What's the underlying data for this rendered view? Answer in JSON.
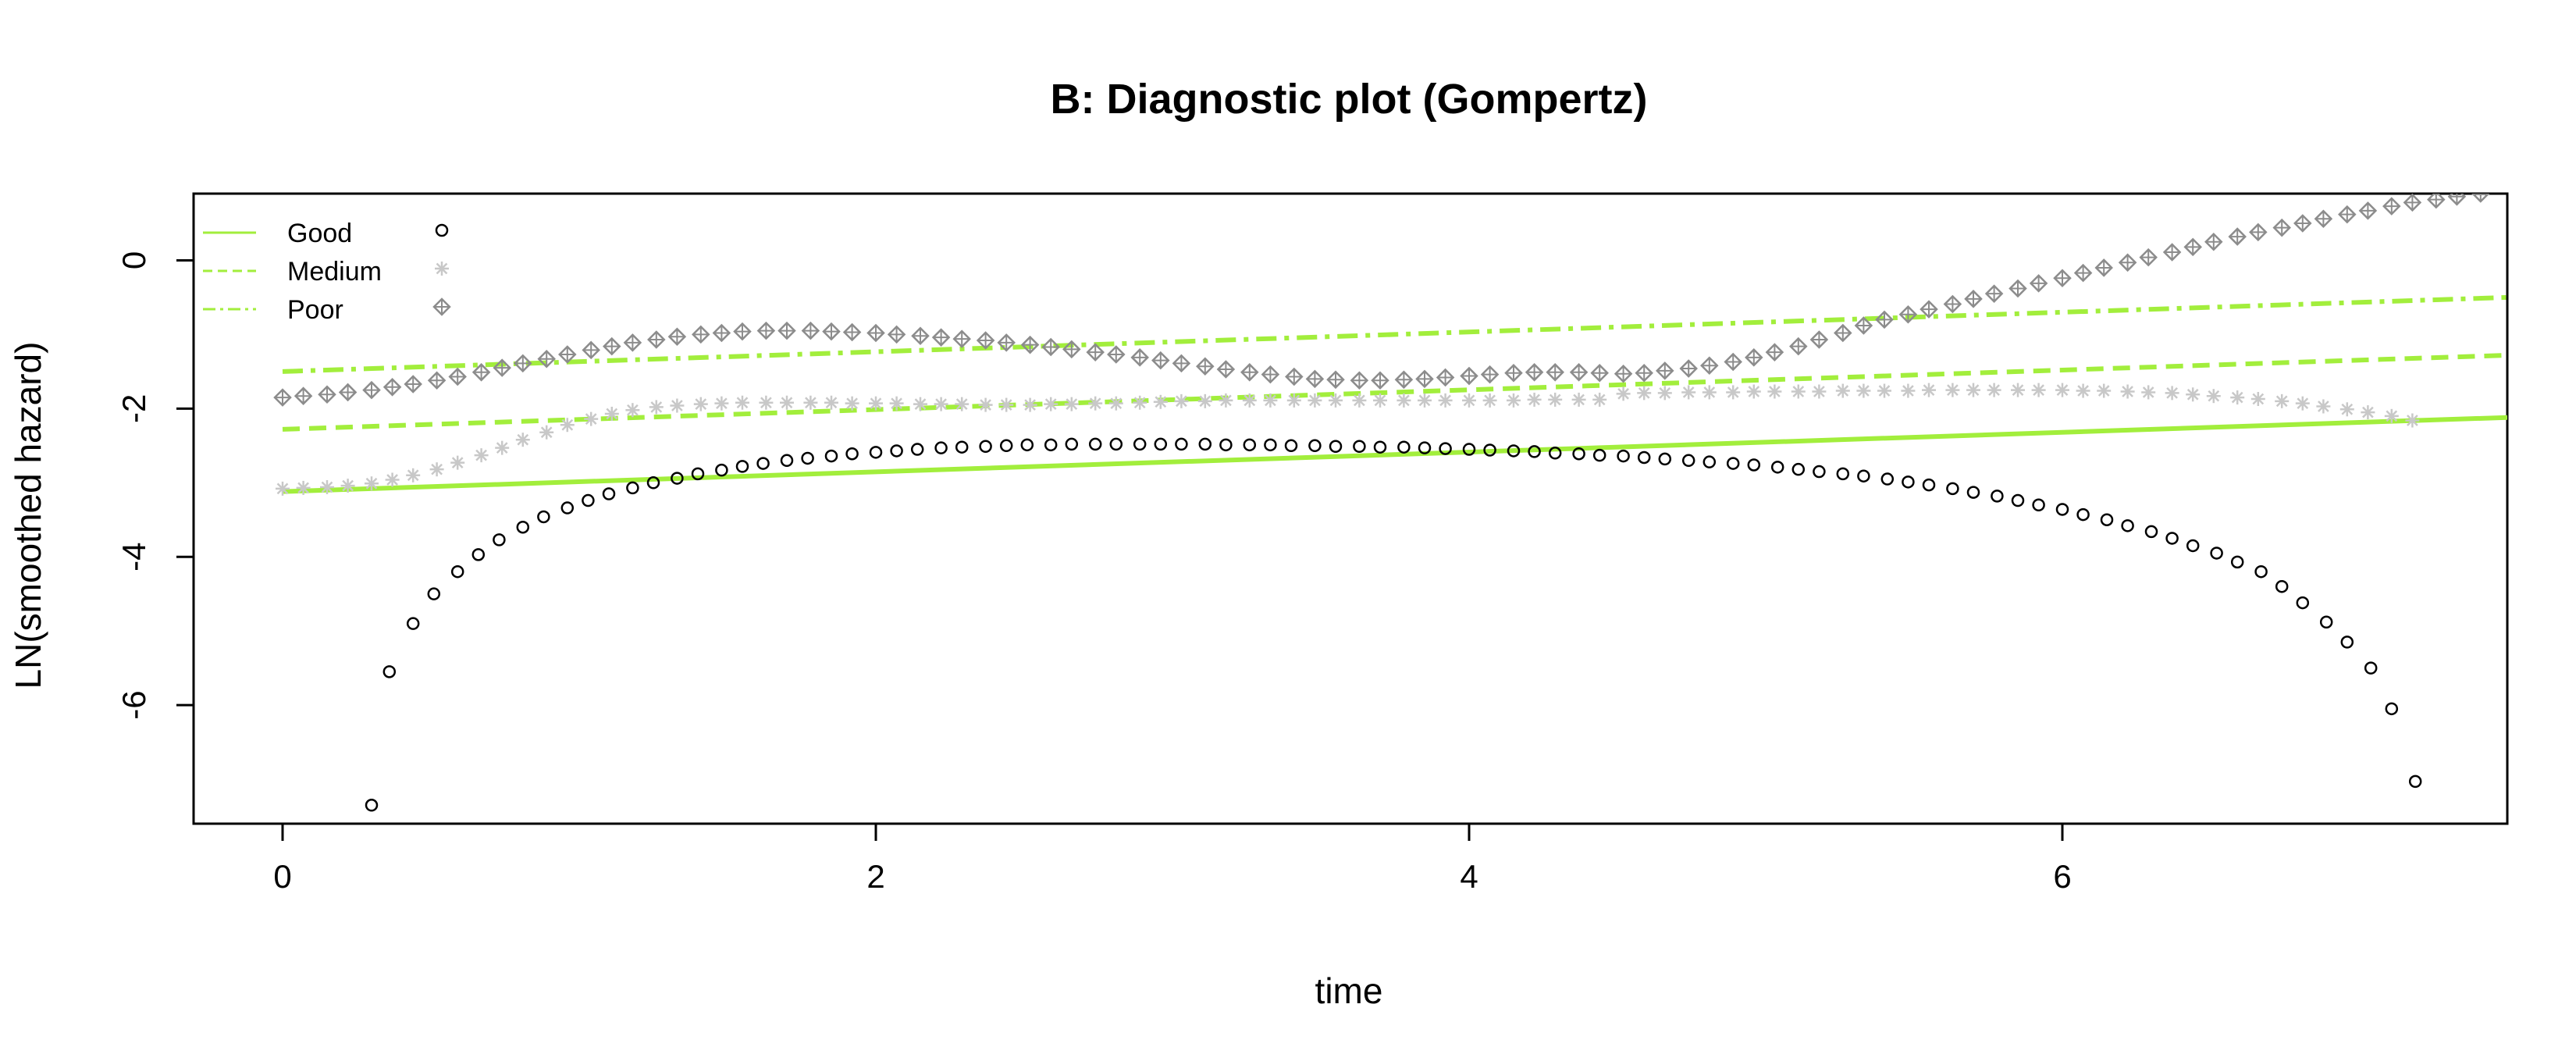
{
  "chart_data": {
    "type": "scatter",
    "title": "B: Diagnostic plot (Gompertz)",
    "xlabel": "time",
    "ylabel": "LN(smoothed hazard)",
    "xlim": [
      -0.3,
      7.5
    ],
    "ylim": [
      -7.6,
      0.9
    ],
    "x_ticks": [
      0,
      2,
      4,
      6
    ],
    "y_ticks": [
      0,
      -2,
      -4,
      -6
    ],
    "grid": false,
    "legend_position": "top-left",
    "colors": {
      "line": "#a2ee3c",
      "good_points": "#000000",
      "medium_points": "#c8c8c8",
      "poor_points": "#8c8c8c"
    },
    "legend": [
      {
        "label": "Good",
        "line_style": "solid",
        "marker": "circle"
      },
      {
        "label": "Medium",
        "line_style": "dashed",
        "marker": "asterisk"
      },
      {
        "label": "Poor",
        "line_style": "dashdot",
        "marker": "diamond-plus"
      }
    ],
    "fitted_lines": [
      {
        "group": "Good",
        "style": "solid",
        "x": [
          0,
          7.5
        ],
        "y": [
          -3.12,
          -2.12
        ]
      },
      {
        "group": "Medium",
        "style": "dashed",
        "x": [
          0,
          7.5
        ],
        "y": [
          -2.28,
          -1.28
        ]
      },
      {
        "group": "Poor",
        "style": "dashdot",
        "x": [
          0,
          7.5
        ],
        "y": [
          -1.5,
          -0.5
        ]
      }
    ],
    "series": [
      {
        "group": "Good",
        "marker": "circle",
        "points": [
          [
            0.3,
            -7.35
          ],
          [
            0.36,
            -5.55
          ],
          [
            0.44,
            -4.9
          ],
          [
            0.51,
            -4.5
          ],
          [
            0.59,
            -4.2
          ],
          [
            0.66,
            -3.97
          ],
          [
            0.73,
            -3.77
          ],
          [
            0.81,
            -3.6
          ],
          [
            0.88,
            -3.46
          ],
          [
            0.96,
            -3.34
          ],
          [
            1.03,
            -3.24
          ],
          [
            1.1,
            -3.15
          ],
          [
            1.18,
            -3.07
          ],
          [
            1.25,
            -3.0
          ],
          [
            1.33,
            -2.94
          ],
          [
            1.4,
            -2.88
          ],
          [
            1.48,
            -2.83
          ],
          [
            1.55,
            -2.78
          ],
          [
            1.62,
            -2.74
          ],
          [
            1.7,
            -2.7
          ],
          [
            1.77,
            -2.67
          ],
          [
            1.85,
            -2.64
          ],
          [
            1.92,
            -2.61
          ],
          [
            2.0,
            -2.59
          ],
          [
            2.07,
            -2.57
          ],
          [
            2.14,
            -2.55
          ],
          [
            2.22,
            -2.53
          ],
          [
            2.29,
            -2.52
          ],
          [
            2.37,
            -2.51
          ],
          [
            2.44,
            -2.5
          ],
          [
            2.51,
            -2.49
          ],
          [
            2.59,
            -2.49
          ],
          [
            2.66,
            -2.48
          ],
          [
            2.74,
            -2.48
          ],
          [
            2.81,
            -2.48
          ],
          [
            2.89,
            -2.48
          ],
          [
            2.96,
            -2.48
          ],
          [
            3.03,
            -2.48
          ],
          [
            3.11,
            -2.48
          ],
          [
            3.18,
            -2.49
          ],
          [
            3.26,
            -2.49
          ],
          [
            3.33,
            -2.49
          ],
          [
            3.4,
            -2.5
          ],
          [
            3.48,
            -2.5
          ],
          [
            3.55,
            -2.51
          ],
          [
            3.63,
            -2.51
          ],
          [
            3.7,
            -2.52
          ],
          [
            3.78,
            -2.52
          ],
          [
            3.85,
            -2.53
          ],
          [
            3.92,
            -2.54
          ],
          [
            4.0,
            -2.55
          ],
          [
            4.07,
            -2.56
          ],
          [
            4.15,
            -2.57
          ],
          [
            4.22,
            -2.58
          ],
          [
            4.29,
            -2.6
          ],
          [
            4.37,
            -2.61
          ],
          [
            4.44,
            -2.63
          ],
          [
            4.52,
            -2.64
          ],
          [
            4.59,
            -2.66
          ],
          [
            4.66,
            -2.68
          ],
          [
            4.74,
            -2.7
          ],
          [
            4.81,
            -2.72
          ],
          [
            4.89,
            -2.74
          ],
          [
            4.96,
            -2.76
          ],
          [
            5.04,
            -2.79
          ],
          [
            5.11,
            -2.82
          ],
          [
            5.18,
            -2.85
          ],
          [
            5.26,
            -2.88
          ],
          [
            5.33,
            -2.91
          ],
          [
            5.41,
            -2.95
          ],
          [
            5.48,
            -2.99
          ],
          [
            5.55,
            -3.03
          ],
          [
            5.63,
            -3.08
          ],
          [
            5.7,
            -3.13
          ],
          [
            5.78,
            -3.18
          ],
          [
            5.85,
            -3.24
          ],
          [
            5.92,
            -3.3
          ],
          [
            6.0,
            -3.36
          ],
          [
            6.07,
            -3.43
          ],
          [
            6.15,
            -3.5
          ],
          [
            6.22,
            -3.58
          ],
          [
            6.3,
            -3.66
          ],
          [
            6.37,
            -3.75
          ],
          [
            6.44,
            -3.85
          ],
          [
            6.52,
            -3.95
          ],
          [
            6.59,
            -4.07
          ],
          [
            6.67,
            -4.2
          ],
          [
            6.74,
            -4.4
          ],
          [
            6.81,
            -4.62
          ],
          [
            6.89,
            -4.88
          ],
          [
            6.96,
            -5.15
          ],
          [
            7.04,
            -5.5
          ],
          [
            7.11,
            -6.05
          ],
          [
            7.19,
            -7.03
          ]
        ]
      },
      {
        "group": "Medium",
        "marker": "asterisk",
        "points": [
          [
            0.0,
            -3.08
          ],
          [
            0.07,
            -3.07
          ],
          [
            0.15,
            -3.06
          ],
          [
            0.22,
            -3.04
          ],
          [
            0.3,
            -3.01
          ],
          [
            0.37,
            -2.96
          ],
          [
            0.44,
            -2.9
          ],
          [
            0.52,
            -2.82
          ],
          [
            0.59,
            -2.73
          ],
          [
            0.67,
            -2.63
          ],
          [
            0.74,
            -2.53
          ],
          [
            0.81,
            -2.42
          ],
          [
            0.89,
            -2.32
          ],
          [
            0.96,
            -2.22
          ],
          [
            1.04,
            -2.14
          ],
          [
            1.11,
            -2.07
          ],
          [
            1.18,
            -2.02
          ],
          [
            1.26,
            -1.98
          ],
          [
            1.33,
            -1.96
          ],
          [
            1.41,
            -1.94
          ],
          [
            1.48,
            -1.93
          ],
          [
            1.55,
            -1.92
          ],
          [
            1.63,
            -1.92
          ],
          [
            1.7,
            -1.92
          ],
          [
            1.78,
            -1.92
          ],
          [
            1.85,
            -1.92
          ],
          [
            1.92,
            -1.93
          ],
          [
            2.0,
            -1.93
          ],
          [
            2.07,
            -1.93
          ],
          [
            2.15,
            -1.94
          ],
          [
            2.22,
            -1.94
          ],
          [
            2.29,
            -1.94
          ],
          [
            2.37,
            -1.95
          ],
          [
            2.44,
            -1.95
          ],
          [
            2.52,
            -1.95
          ],
          [
            2.59,
            -1.94
          ],
          [
            2.66,
            -1.94
          ],
          [
            2.74,
            -1.93
          ],
          [
            2.81,
            -1.93
          ],
          [
            2.89,
            -1.92
          ],
          [
            2.96,
            -1.91
          ],
          [
            3.03,
            -1.9
          ],
          [
            3.11,
            -1.9
          ],
          [
            3.18,
            -1.89
          ],
          [
            3.26,
            -1.89
          ],
          [
            3.33,
            -1.89
          ],
          [
            3.41,
            -1.89
          ],
          [
            3.48,
            -1.89
          ],
          [
            3.55,
            -1.89
          ],
          [
            3.63,
            -1.89
          ],
          [
            3.7,
            -1.89
          ],
          [
            3.78,
            -1.89
          ],
          [
            3.85,
            -1.89
          ],
          [
            3.92,
            -1.89
          ],
          [
            4.0,
            -1.89
          ],
          [
            4.07,
            -1.89
          ],
          [
            4.15,
            -1.89
          ],
          [
            4.22,
            -1.88
          ],
          [
            4.29,
            -1.88
          ],
          [
            4.37,
            -1.88
          ],
          [
            4.44,
            -1.88
          ],
          [
            4.52,
            -1.8
          ],
          [
            4.59,
            -1.79
          ],
          [
            4.66,
            -1.79
          ],
          [
            4.74,
            -1.78
          ],
          [
            4.81,
            -1.78
          ],
          [
            4.89,
            -1.78
          ],
          [
            4.96,
            -1.77
          ],
          [
            5.03,
            -1.77
          ],
          [
            5.11,
            -1.77
          ],
          [
            5.18,
            -1.77
          ],
          [
            5.26,
            -1.76
          ],
          [
            5.33,
            -1.76
          ],
          [
            5.4,
            -1.76
          ],
          [
            5.48,
            -1.76
          ],
          [
            5.55,
            -1.75
          ],
          [
            5.63,
            -1.75
          ],
          [
            5.7,
            -1.75
          ],
          [
            5.77,
            -1.75
          ],
          [
            5.85,
            -1.75
          ],
          [
            5.92,
            -1.75
          ],
          [
            6.0,
            -1.75
          ],
          [
            6.07,
            -1.76
          ],
          [
            6.14,
            -1.76
          ],
          [
            6.22,
            -1.77
          ],
          [
            6.29,
            -1.78
          ],
          [
            6.37,
            -1.79
          ],
          [
            6.44,
            -1.81
          ],
          [
            6.51,
            -1.83
          ],
          [
            6.59,
            -1.85
          ],
          [
            6.66,
            -1.87
          ],
          [
            6.74,
            -1.9
          ],
          [
            6.81,
            -1.93
          ],
          [
            6.88,
            -1.97
          ],
          [
            6.96,
            -2.01
          ],
          [
            7.03,
            -2.05
          ],
          [
            7.11,
            -2.1
          ],
          [
            7.18,
            -2.16
          ]
        ]
      },
      {
        "group": "Poor",
        "marker": "diamond-plus",
        "points": [
          [
            0.0,
            -1.85
          ],
          [
            0.07,
            -1.83
          ],
          [
            0.15,
            -1.81
          ],
          [
            0.22,
            -1.78
          ],
          [
            0.3,
            -1.75
          ],
          [
            0.37,
            -1.71
          ],
          [
            0.44,
            -1.67
          ],
          [
            0.52,
            -1.62
          ],
          [
            0.59,
            -1.57
          ],
          [
            0.67,
            -1.51
          ],
          [
            0.74,
            -1.45
          ],
          [
            0.81,
            -1.39
          ],
          [
            0.89,
            -1.33
          ],
          [
            0.96,
            -1.27
          ],
          [
            1.04,
            -1.21
          ],
          [
            1.11,
            -1.16
          ],
          [
            1.18,
            -1.11
          ],
          [
            1.26,
            -1.07
          ],
          [
            1.33,
            -1.03
          ],
          [
            1.41,
            -1.0
          ],
          [
            1.48,
            -0.98
          ],
          [
            1.55,
            -0.96
          ],
          [
            1.63,
            -0.95
          ],
          [
            1.7,
            -0.95
          ],
          [
            1.78,
            -0.95
          ],
          [
            1.85,
            -0.96
          ],
          [
            1.92,
            -0.97
          ],
          [
            2.0,
            -0.98
          ],
          [
            2.07,
            -1.0
          ],
          [
            2.15,
            -1.02
          ],
          [
            2.22,
            -1.04
          ],
          [
            2.29,
            -1.06
          ],
          [
            2.37,
            -1.08
          ],
          [
            2.44,
            -1.11
          ],
          [
            2.52,
            -1.14
          ],
          [
            2.59,
            -1.17
          ],
          [
            2.66,
            -1.2
          ],
          [
            2.74,
            -1.24
          ],
          [
            2.81,
            -1.27
          ],
          [
            2.89,
            -1.31
          ],
          [
            2.96,
            -1.35
          ],
          [
            3.03,
            -1.39
          ],
          [
            3.11,
            -1.43
          ],
          [
            3.18,
            -1.47
          ],
          [
            3.26,
            -1.51
          ],
          [
            3.33,
            -1.54
          ],
          [
            3.41,
            -1.57
          ],
          [
            3.48,
            -1.6
          ],
          [
            3.55,
            -1.61
          ],
          [
            3.63,
            -1.62
          ],
          [
            3.7,
            -1.62
          ],
          [
            3.78,
            -1.61
          ],
          [
            3.85,
            -1.6
          ],
          [
            3.92,
            -1.58
          ],
          [
            4.0,
            -1.56
          ],
          [
            4.07,
            -1.54
          ],
          [
            4.15,
            -1.52
          ],
          [
            4.22,
            -1.51
          ],
          [
            4.29,
            -1.51
          ],
          [
            4.37,
            -1.51
          ],
          [
            4.44,
            -1.52
          ],
          [
            4.52,
            -1.53
          ],
          [
            4.59,
            -1.52
          ],
          [
            4.66,
            -1.49
          ],
          [
            4.74,
            -1.46
          ],
          [
            4.81,
            -1.42
          ],
          [
            4.89,
            -1.37
          ],
          [
            4.96,
            -1.31
          ],
          [
            5.03,
            -1.24
          ],
          [
            5.11,
            -1.16
          ],
          [
            5.18,
            -1.07
          ],
          [
            5.26,
            -0.98
          ],
          [
            5.33,
            -0.88
          ],
          [
            5.4,
            -0.8
          ],
          [
            5.48,
            -0.73
          ],
          [
            5.55,
            -0.66
          ],
          [
            5.63,
            -0.59
          ],
          [
            5.7,
            -0.52
          ],
          [
            5.77,
            -0.45
          ],
          [
            5.85,
            -0.38
          ],
          [
            5.92,
            -0.31
          ],
          [
            6.0,
            -0.24
          ],
          [
            6.07,
            -0.17
          ],
          [
            6.14,
            -0.1
          ],
          [
            6.22,
            -0.03
          ],
          [
            6.29,
            0.04
          ],
          [
            6.37,
            0.11
          ],
          [
            6.44,
            0.18
          ],
          [
            6.51,
            0.25
          ],
          [
            6.59,
            0.32
          ],
          [
            6.66,
            0.38
          ],
          [
            6.74,
            0.44
          ],
          [
            6.81,
            0.5
          ],
          [
            6.88,
            0.56
          ],
          [
            6.96,
            0.62
          ],
          [
            7.03,
            0.67
          ],
          [
            7.11,
            0.73
          ],
          [
            7.18,
            0.78
          ],
          [
            7.26,
            0.82
          ],
          [
            7.33,
            0.86
          ],
          [
            7.41,
            0.9
          ]
        ]
      }
    ]
  }
}
